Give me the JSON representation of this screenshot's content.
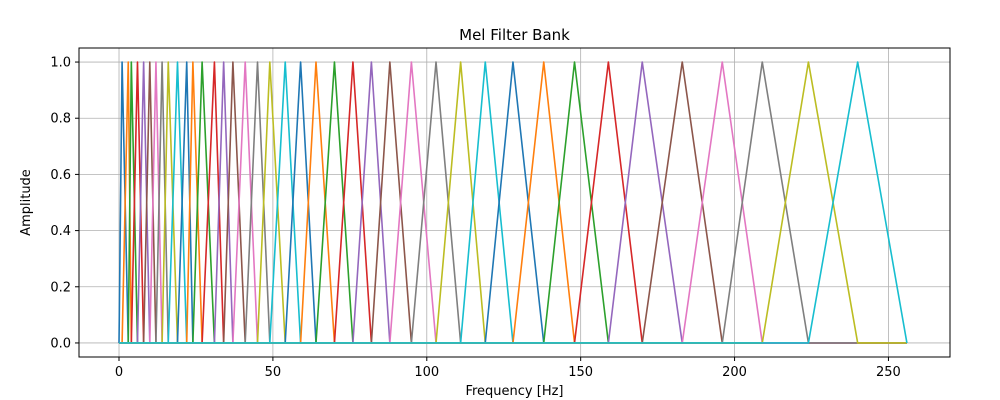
{
  "chart_data": {
    "type": "line",
    "title": "Mel Filter Bank",
    "xlabel": "Frequency [Hz]",
    "ylabel": "Amplitude",
    "xlim": [
      -13,
      270
    ],
    "ylim": [
      -0.05,
      1.05
    ],
    "grid": true,
    "x_ticks": [
      0,
      50,
      100,
      150,
      200,
      250
    ],
    "y_ticks": [
      0.0,
      0.2,
      0.4,
      0.6,
      0.8,
      1.0
    ],
    "x_tick_labels": [
      "0",
      "50",
      "100",
      "150",
      "200",
      "250"
    ],
    "y_tick_labels": [
      "0.0",
      "0.2",
      "0.4",
      "0.6",
      "0.8",
      "1.0"
    ],
    "filter_points": [
      0,
      1,
      3,
      4,
      6,
      8,
      10,
      12,
      14,
      16,
      19,
      22,
      24,
      27,
      31,
      34,
      37,
      41,
      45,
      49,
      54,
      59,
      64,
      70,
      76,
      82,
      88,
      95,
      103,
      111,
      119,
      128,
      138,
      148,
      159,
      170,
      183,
      196,
      209,
      224,
      240,
      256
    ],
    "x_max": 256,
    "colors": [
      "#1f77b4",
      "#ff7f0e",
      "#2ca02c",
      "#d62728",
      "#9467bd",
      "#8c564b",
      "#e377c2",
      "#7f7f7f",
      "#bcbd22",
      "#17becf"
    ]
  }
}
